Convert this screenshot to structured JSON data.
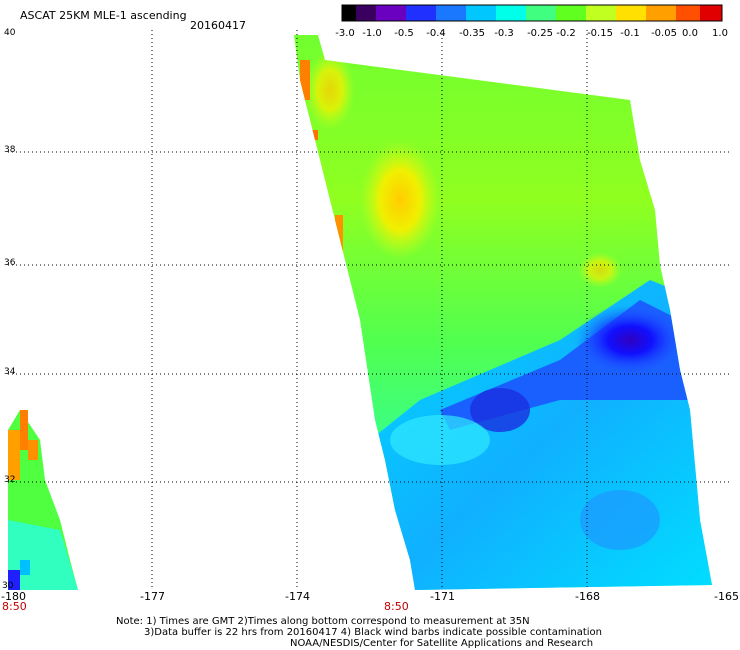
{
  "title": "ASCAT 25KM MLE-1 ascending",
  "date": "20160417",
  "colorbar": {
    "labels": [
      "-3.0",
      "-1.0",
      "-0.5",
      "-0.4",
      "-0.35",
      "-0.3",
      "-0.25",
      "-0.2",
      "-0.15",
      "-0.1",
      "-0.05",
      "0.0",
      "1.0"
    ],
    "colors": [
      "#000000",
      "#3a0060",
      "#6a00c0",
      "#2030ff",
      "#1a78ff",
      "#00c8ff",
      "#00ffe8",
      "#40ff80",
      "#60ff20",
      "#c0ff20",
      "#ffe000",
      "#ffa000",
      "#ff5000",
      "#e00000"
    ]
  },
  "axes": {
    "lon_ticks": [
      "-180",
      "-177",
      "-174",
      "-171",
      "-168",
      "-165"
    ],
    "lat_ticks": [
      "40",
      "38",
      "36",
      "34",
      "32",
      "30"
    ]
  },
  "times": [
    "8:50",
    "8:50"
  ],
  "notes": [
    "Note: 1) Times are GMT 2)Times along bottom correspond to measurement at 35N",
    "3)Data buffer is 22 hrs from 20160417 4) Black wind barbs indicate possible contamination",
    "NOAA/NESDIS/Center for Satellite Applications and Research"
  ]
}
